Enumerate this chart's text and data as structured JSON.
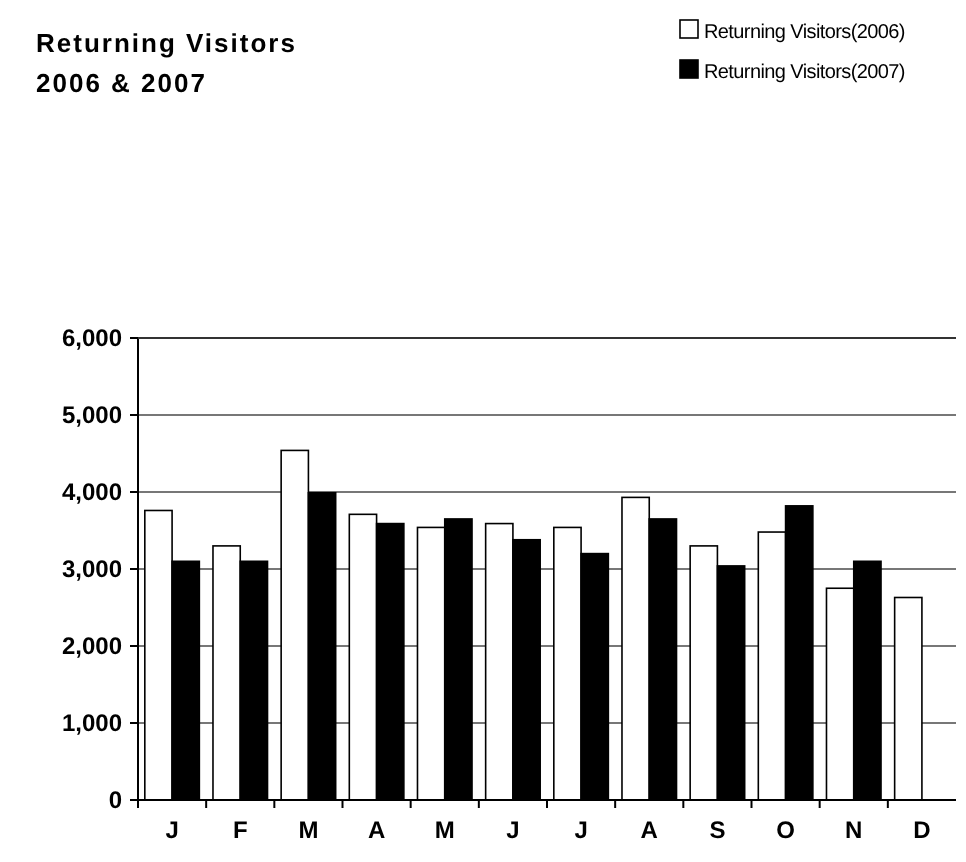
{
  "chart_data": {
    "type": "bar",
    "title": "Returning Visitors\n2006 & 2007",
    "categories": [
      "J",
      "F",
      "M",
      "A",
      "M",
      "J",
      "J",
      "A",
      "S",
      "O",
      "N",
      "D"
    ],
    "series": [
      {
        "name": "Returning Visitors(2006)",
        "color": "#ffffff",
        "values": [
          3760,
          3300,
          4540,
          3710,
          3540,
          3590,
          3540,
          3930,
          3300,
          3480,
          2750,
          2630
        ]
      },
      {
        "name": "Returning Visitors(2007)",
        "color": "#000000",
        "values": [
          3100,
          3100,
          3990,
          3590,
          3650,
          3380,
          3200,
          3650,
          3040,
          3820,
          3100,
          null
        ]
      }
    ],
    "ylim": [
      0,
      6000
    ],
    "yticks": [
      {
        "value": 0,
        "label": "0"
      },
      {
        "value": 1000,
        "label": "1,000"
      },
      {
        "value": 2000,
        "label": "2,000"
      },
      {
        "value": 3000,
        "label": "3,000"
      },
      {
        "value": 4000,
        "label": "4,000"
      },
      {
        "value": 5000,
        "label": "5,000"
      },
      {
        "value": 6000,
        "label": "6,000"
      }
    ],
    "grid": "y",
    "legend": "top right"
  }
}
